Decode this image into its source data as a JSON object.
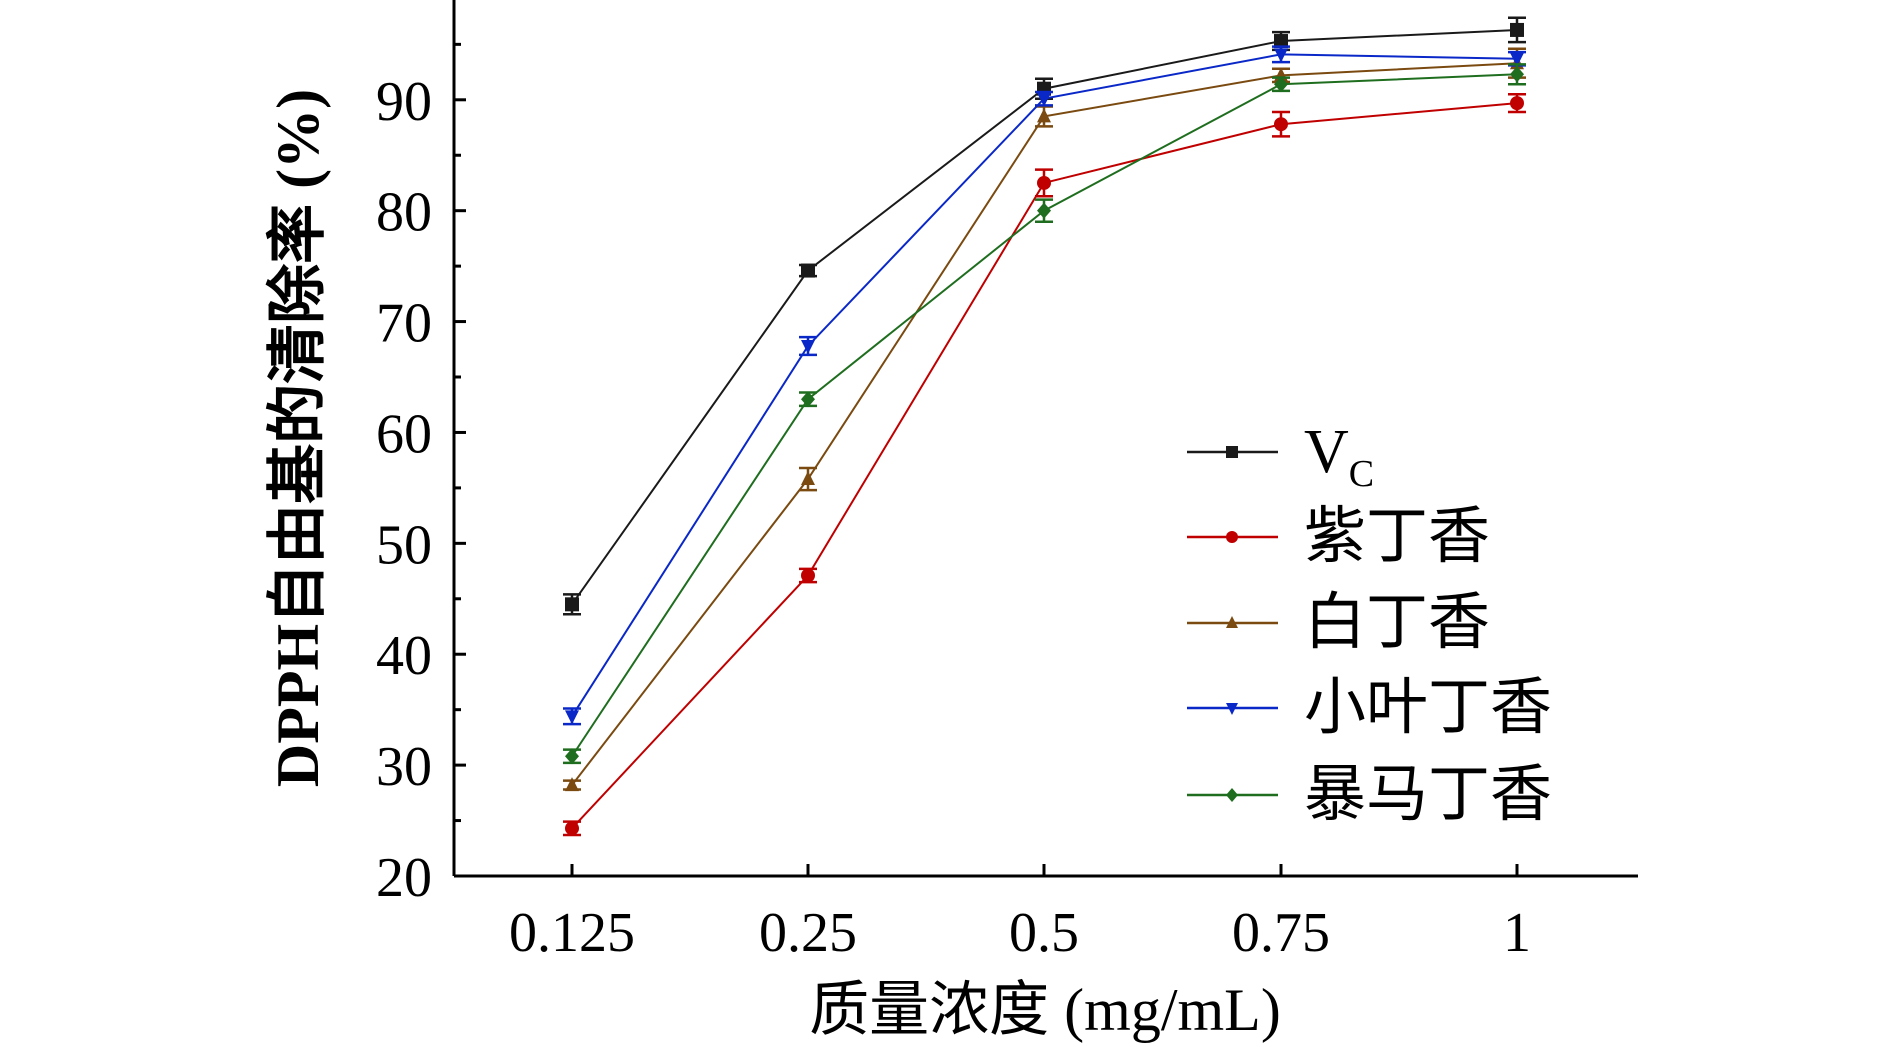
{
  "chart_data": {
    "type": "line",
    "title": "",
    "xlabel": "质量浓度 (mg/mL)",
    "ylabel": "DPPH自由基的清除率 (%)",
    "categories": [
      "0.125",
      "0.25",
      "0.5",
      "0.75",
      "1"
    ],
    "ylim": [
      20,
      99
    ],
    "yticks": [
      20,
      30,
      40,
      50,
      60,
      70,
      80,
      90
    ],
    "grid": false,
    "legend_position": "right-middle",
    "series": [
      {
        "name": "V",
        "subscript": "C",
        "color": "#1a1a1a",
        "marker": "square",
        "values": [
          44.5,
          74.6,
          91.0,
          95.3,
          96.3
        ],
        "errors": [
          0.9,
          0.5,
          0.9,
          0.8,
          1.1
        ]
      },
      {
        "name": "紫丁香",
        "color": "#c00000",
        "marker": "circle",
        "values": [
          24.3,
          47.1,
          82.5,
          87.8,
          89.7
        ],
        "errors": [
          0.6,
          0.6,
          1.2,
          1.1,
          0.8
        ]
      },
      {
        "name": "白丁香",
        "color": "#7a4a10",
        "marker": "triangle-up",
        "values": [
          28.2,
          55.8,
          88.5,
          92.2,
          93.3
        ],
        "errors": [
          0.4,
          1.0,
          0.9,
          0.6,
          1.3
        ]
      },
      {
        "name": "小叶丁香",
        "color": "#0a28c8",
        "marker": "triangle-down",
        "values": [
          34.4,
          67.8,
          90.1,
          94.1,
          93.7
        ],
        "errors": [
          0.7,
          0.8,
          0.6,
          0.7,
          0.6
        ]
      },
      {
        "name": "暴马丁香",
        "color": "#1f6e1f",
        "marker": "diamond",
        "values": [
          30.8,
          63.0,
          80.0,
          91.4,
          92.3
        ],
        "errors": [
          0.6,
          0.6,
          1.0,
          0.6,
          0.9
        ]
      }
    ]
  }
}
